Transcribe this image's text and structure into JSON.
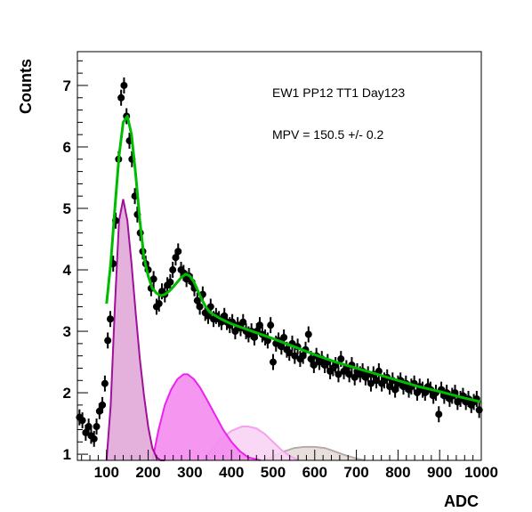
{
  "chart_data": {
    "type": "scatter",
    "xlabel": "ADC",
    "ylabel": "Counts",
    "xlim": [
      30,
      1000
    ],
    "ylim": [
      0.9,
      7.55
    ],
    "xticks": [
      100,
      200,
      300,
      400,
      500,
      600,
      700,
      800,
      900,
      1000
    ],
    "yticks": [
      1,
      2,
      3,
      4,
      5,
      6,
      7
    ],
    "grid": false,
    "annotations": [
      "EW1 PP12 TT1 Day123",
      "MPV = 150.5 +/- 0.2"
    ],
    "colors": {
      "data": "#000000",
      "fit": "#00bb00",
      "peak1_fill": "#e0a8d8",
      "peak1_line": "#a0109a",
      "peak2_fill": "#f48cf0",
      "peak2_line": "#ee22ee",
      "peak3_fill": "#f8d4f4",
      "peak3_line": "#f6a0ee",
      "peak4_fill": "#e4dcd8",
      "peak4_line": "#b8aaa6"
    },
    "series": [
      {
        "kind": "data-points",
        "x": [
          35,
          42,
          50,
          57,
          63,
          70,
          76,
          83,
          90,
          96,
          103,
          109,
          116,
          122,
          129,
          135,
          142,
          148,
          155,
          161,
          168,
          174,
          181,
          187,
          194,
          200,
          207,
          213,
          220,
          226,
          233,
          240,
          246,
          253,
          259,
          266,
          272,
          279,
          285,
          292,
          298,
          305,
          311,
          318,
          324,
          331,
          337,
          344,
          350,
          357,
          363,
          370,
          376,
          383,
          389,
          396,
          402,
          409,
          415,
          422,
          428,
          435,
          441,
          448,
          455,
          461,
          468,
          474,
          481,
          487,
          494,
          500,
          507,
          513,
          520,
          526,
          533,
          539,
          546,
          552,
          559,
          565,
          572,
          578,
          585,
          591,
          598,
          604,
          611,
          617,
          624,
          631,
          637,
          644,
          650,
          657,
          663,
          670,
          676,
          683,
          689,
          696,
          702,
          709,
          715,
          722,
          728,
          735,
          741,
          748,
          754,
          761,
          767,
          774,
          780,
          787,
          793,
          800,
          806,
          813,
          819,
          826,
          832,
          839,
          846,
          852,
          859,
          865,
          872,
          878,
          885,
          891,
          898,
          904,
          911,
          917,
          924,
          930,
          937,
          943,
          950,
          956,
          963,
          969,
          976,
          982,
          989,
          995
        ],
        "y": [
          1.6,
          1.55,
          1.35,
          1.45,
          1.3,
          1.25,
          1.45,
          1.7,
          1.8,
          2.15,
          2.85,
          3.2,
          4.1,
          4.8,
          5.8,
          6.8,
          7.0,
          6.5,
          6.1,
          5.8,
          5.2,
          4.9,
          4.6,
          4.3,
          4.1,
          4.0,
          3.7,
          3.85,
          3.4,
          3.45,
          3.65,
          3.6,
          3.75,
          3.8,
          4.0,
          4.2,
          4.3,
          4.0,
          3.95,
          3.85,
          3.9,
          3.8,
          3.7,
          3.5,
          3.4,
          3.6,
          3.3,
          3.25,
          3.4,
          3.2,
          3.25,
          3.2,
          3.15,
          3.25,
          3.15,
          3.1,
          3.15,
          3.0,
          3.1,
          3.05,
          3.15,
          3.0,
          2.95,
          3.0,
          2.9,
          3.0,
          3.1,
          2.95,
          2.9,
          2.85,
          3.1,
          2.5,
          2.8,
          2.85,
          2.75,
          2.9,
          2.7,
          2.65,
          2.8,
          2.6,
          2.75,
          2.55,
          2.6,
          2.7,
          2.95,
          2.55,
          2.45,
          2.6,
          2.5,
          2.55,
          2.45,
          2.5,
          2.35,
          2.4,
          2.45,
          2.3,
          2.55,
          2.35,
          2.4,
          2.3,
          2.45,
          2.25,
          2.35,
          2.3,
          2.35,
          2.25,
          2.3,
          2.15,
          2.3,
          2.2,
          2.35,
          2.15,
          2.2,
          2.25,
          2.1,
          2.2,
          2.05,
          2.15,
          2.2,
          2.1,
          2.15,
          2.05,
          2.1,
          2.15,
          2.0,
          2.1,
          2.05,
          2.0,
          2.1,
          2.05,
          1.95,
          2.0,
          1.65,
          2.05,
          1.95,
          2.0,
          1.9,
          1.95,
          2.0,
          1.85,
          1.9,
          1.95,
          1.85,
          1.9,
          1.8,
          1.85,
          1.9,
          1.72
        ],
        "y_err": 0.13
      },
      {
        "kind": "fit-curve",
        "x": [
          100,
          110,
          120,
          130,
          140,
          150,
          160,
          170,
          180,
          190,
          200,
          210,
          220,
          230,
          240,
          250,
          260,
          270,
          280,
          290,
          300,
          310,
          320,
          330,
          340,
          350,
          375,
          400,
          450,
          500,
          550,
          600,
          650,
          700,
          750,
          800,
          850,
          900,
          950,
          1000
        ],
        "y": [
          3.45,
          4.1,
          5.0,
          5.85,
          6.4,
          6.5,
          6.2,
          5.55,
          4.8,
          4.2,
          3.9,
          3.7,
          3.62,
          3.58,
          3.6,
          3.65,
          3.72,
          3.8,
          3.88,
          3.93,
          3.9,
          3.8,
          3.65,
          3.5,
          3.38,
          3.3,
          3.2,
          3.12,
          3.0,
          2.88,
          2.75,
          2.62,
          2.5,
          2.4,
          2.3,
          2.2,
          2.1,
          2.02,
          1.93,
          1.85
        ]
      },
      {
        "kind": "peak-1",
        "x": [
          100,
          110,
          120,
          130,
          140,
          150,
          160,
          170,
          180,
          190,
          200,
          210,
          220,
          230,
          240
        ],
        "y": [
          0.9,
          1.8,
          3.4,
          4.8,
          5.15,
          4.8,
          4.1,
          3.3,
          2.55,
          1.95,
          1.45,
          1.1,
          0.95,
          0.9,
          0.9
        ]
      },
      {
        "kind": "peak-2",
        "x": [
          210,
          225,
          240,
          255,
          270,
          285,
          295,
          310,
          325,
          340,
          360,
          380,
          400,
          420,
          440,
          470
        ],
        "y": [
          0.9,
          1.4,
          1.8,
          2.05,
          2.22,
          2.3,
          2.3,
          2.22,
          2.08,
          1.9,
          1.65,
          1.4,
          1.2,
          1.05,
          0.95,
          0.9
        ]
      },
      {
        "kind": "peak-3",
        "x": [
          330,
          350,
          375,
          400,
          425,
          440,
          460,
          480,
          500,
          520,
          540,
          560
        ],
        "y": [
          0.9,
          1.05,
          1.25,
          1.38,
          1.45,
          1.45,
          1.42,
          1.33,
          1.2,
          1.07,
          0.97,
          0.9
        ]
      },
      {
        "kind": "peak-4",
        "x": [
          475,
          500,
          525,
          550,
          575,
          600,
          625,
          650,
          675,
          700,
          720
        ],
        "y": [
          0.9,
          0.96,
          1.04,
          1.1,
          1.12,
          1.12,
          1.1,
          1.04,
          0.98,
          0.93,
          0.9
        ]
      }
    ]
  }
}
